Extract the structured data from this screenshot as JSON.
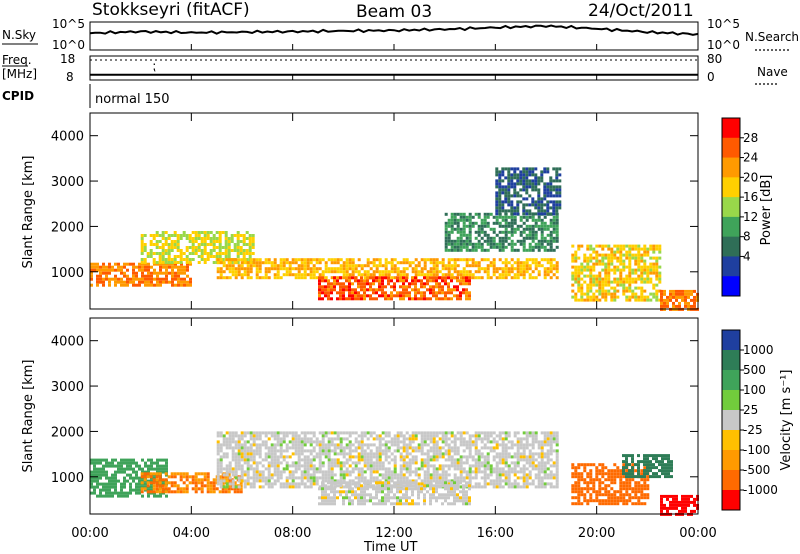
{
  "header": {
    "radar": "Stokkseyri (fitACF)",
    "beam": "Beam 03",
    "date": "24/Oct/2011"
  },
  "strip": {
    "nsky_label": "N.Sky",
    "nsky_ticks": [
      "10^5",
      "10^0"
    ],
    "nsearch_label": "N.Search",
    "nsearch_ticks": [
      "10^5",
      "10^0"
    ],
    "freq_label_top": "Freq.",
    "freq_label_bottom": "[MHz]",
    "freq_ticks": [
      "18",
      "8"
    ],
    "nave_label": "Nave",
    "nave_ticks": [
      "80",
      "0"
    ],
    "cpid_label": "CPID",
    "cpid_value": "normal 150"
  },
  "axes": {
    "ylabel": "Slant Range [km]",
    "yticks": [
      "4000",
      "3000",
      "2000",
      "1000"
    ],
    "xlabel": "Time UT",
    "xticks": [
      "00:00",
      "04:00",
      "08:00",
      "12:00",
      "16:00",
      "20:00",
      "00:00"
    ]
  },
  "colorbars": {
    "power": {
      "label": "Power [dB]",
      "ticks": [
        "28",
        "24",
        "20",
        "16",
        "12",
        "8",
        "4"
      ],
      "colors": [
        "#ff0000",
        "#ff5a00",
        "#ff9a00",
        "#ffd000",
        "#99d84a",
        "#3fa35a",
        "#2f6e57",
        "#1f3f9f",
        "#0000ff"
      ]
    },
    "velocity": {
      "label": "Velocity [m s⁻¹]",
      "ticks": [
        "1000",
        "500",
        "100",
        "25",
        "-25",
        "-100",
        "-500",
        "-1000"
      ],
      "colors": [
        "#1f3f9f",
        "#2e7d57",
        "#3fa35a",
        "#72cc3c",
        "#c8c8c8",
        "#ffc000",
        "#ff9a00",
        "#ff6a00",
        "#ff0000"
      ]
    }
  },
  "chart_data": [
    {
      "type": "heatmap",
      "title": "Power",
      "x": [
        "00:00",
        "04:00",
        "08:00",
        "12:00",
        "16:00",
        "20:00",
        "00:00"
      ],
      "xlabel": "Time UT",
      "ylabel": "Slant Range [km]",
      "ylim": [
        180,
        4500
      ],
      "zlabel": "Power [dB]",
      "zlim": [
        0,
        32
      ],
      "regions": [
        {
          "t_start": 0.0,
          "t_end": 4.0,
          "r_low": 700,
          "r_high": 1200,
          "value": 26
        },
        {
          "t_start": 2.0,
          "t_end": 6.5,
          "r_low": 1200,
          "r_high": 1900,
          "value": 18
        },
        {
          "t_start": 5.0,
          "t_end": 18.5,
          "r_low": 900,
          "r_high": 1300,
          "value": 22
        },
        {
          "t_start": 9.0,
          "t_end": 15.0,
          "r_low": 400,
          "r_high": 900,
          "value": 28
        },
        {
          "t_start": 14.0,
          "t_end": 18.5,
          "r_low": 1500,
          "r_high": 2300,
          "value": 10
        },
        {
          "t_start": 16.0,
          "t_end": 18.5,
          "r_low": 2300,
          "r_high": 3300,
          "value": 6
        },
        {
          "t_start": 19.0,
          "t_end": 22.5,
          "r_low": 400,
          "r_high": 1600,
          "value": 20
        },
        {
          "t_start": 22.5,
          "t_end": 24.0,
          "r_low": 200,
          "r_high": 600,
          "value": 26
        }
      ]
    },
    {
      "type": "heatmap",
      "title": "Velocity",
      "x": [
        "00:00",
        "04:00",
        "08:00",
        "12:00",
        "16:00",
        "20:00",
        "00:00"
      ],
      "xlabel": "Time UT",
      "ylabel": "Slant Range [km]",
      "ylim": [
        180,
        4500
      ],
      "zlabel": "Velocity [m s⁻¹]",
      "zlim": [
        -1000,
        1000
      ],
      "regions": [
        {
          "t_start": 0.0,
          "t_end": 3.0,
          "r_low": 600,
          "r_high": 1400,
          "value": 100
        },
        {
          "t_start": 2.0,
          "t_end": 6.0,
          "r_low": 700,
          "r_high": 1100,
          "value": -300
        },
        {
          "t_start": 5.0,
          "t_end": 18.5,
          "r_low": 800,
          "r_high": 2000,
          "value": 0
        },
        {
          "t_start": 9.0,
          "t_end": 15.0,
          "r_low": 400,
          "r_high": 900,
          "value": 0
        },
        {
          "t_start": 19.0,
          "t_end": 22.0,
          "r_low": 400,
          "r_high": 1300,
          "value": -600
        },
        {
          "t_start": 21.0,
          "t_end": 23.0,
          "r_low": 1000,
          "r_high": 1500,
          "value": 600
        },
        {
          "t_start": 22.5,
          "t_end": 24.0,
          "r_low": 200,
          "r_high": 600,
          "value": -800
        }
      ]
    },
    {
      "type": "line",
      "title": "N.Sky",
      "x_hours": [
        0,
        2,
        4,
        6,
        8,
        10,
        12,
        14,
        16,
        18,
        20,
        22,
        24
      ],
      "values_log10": [
        3.0,
        3.3,
        3.1,
        3.2,
        3.3,
        3.4,
        3.5,
        3.7,
        4.0,
        4.3,
        3.8,
        3.2,
        2.8
      ],
      "ylim": [
        0,
        5
      ]
    },
    {
      "type": "line",
      "title": "Freq.",
      "x_hours": [
        0,
        24
      ],
      "values": [
        10.2,
        10.2
      ],
      "ylim": [
        8,
        18
      ]
    }
  ]
}
